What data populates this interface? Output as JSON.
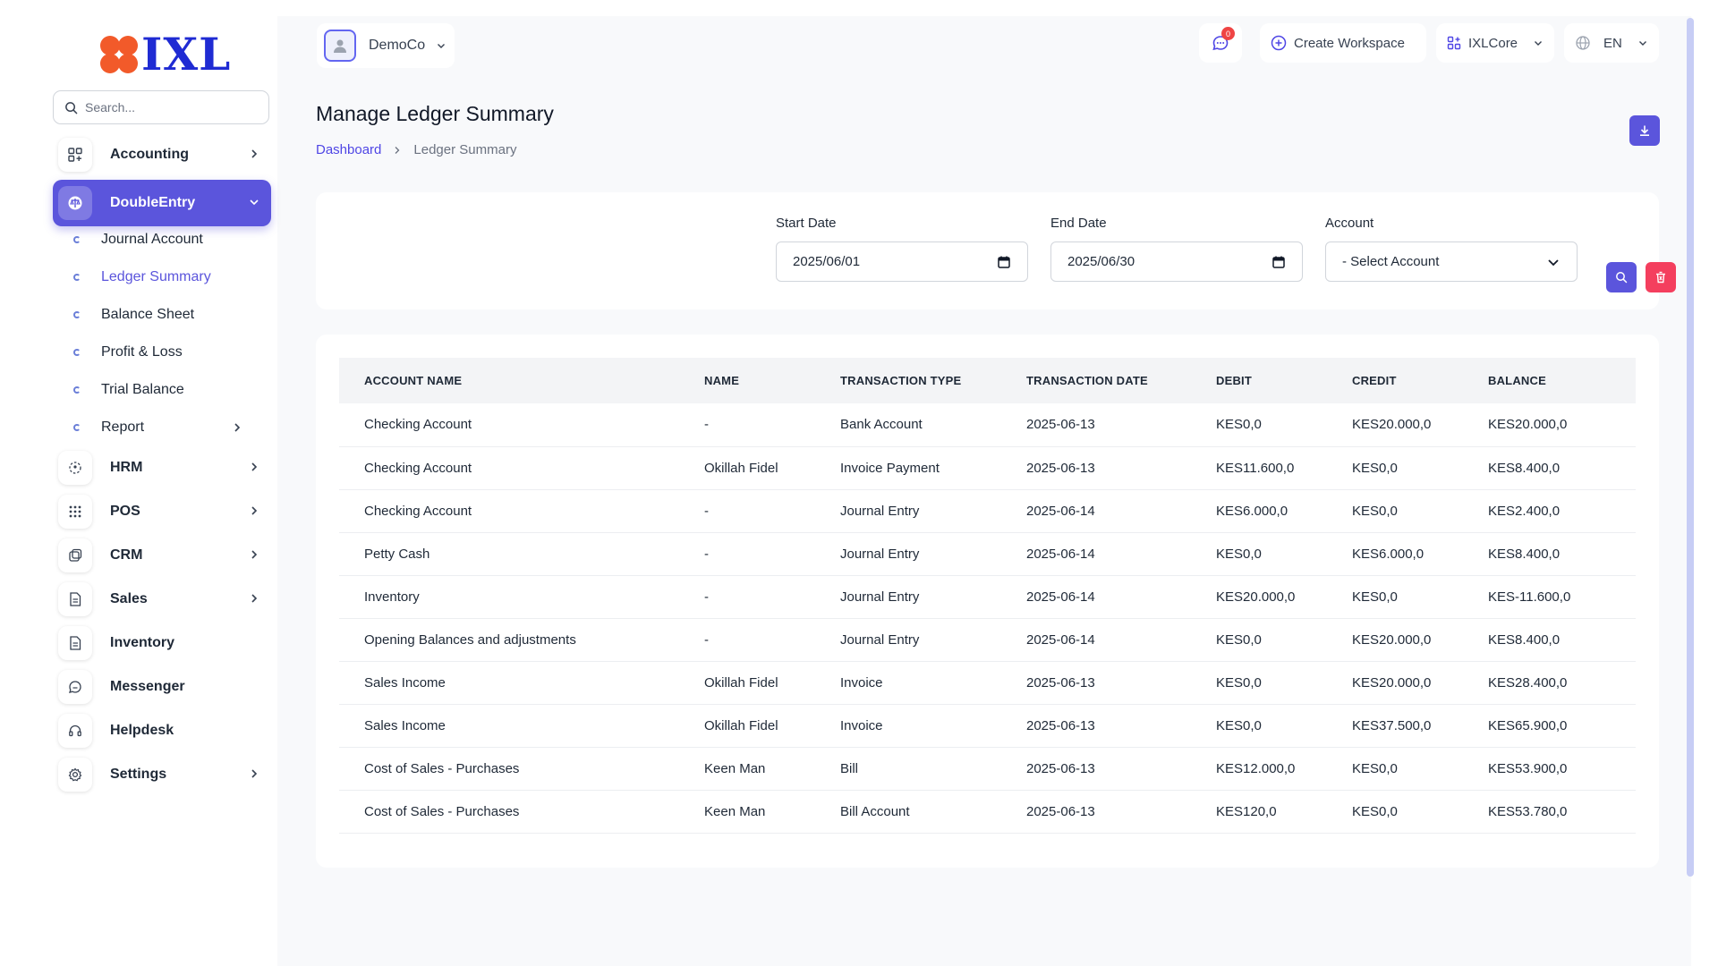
{
  "app": {
    "logo_text": "IXL",
    "brand_color": "#1f2bd3",
    "accent_color": "#5b55dc",
    "danger_color": "#f43f5e"
  },
  "search": {
    "placeholder": "Search..."
  },
  "sidebar": {
    "items": [
      {
        "label": "Accounting",
        "icon": "grid-icon",
        "has_children": true
      },
      {
        "label": "DoubleEntry",
        "icon": "scale-icon",
        "active": true,
        "expanded": true
      },
      {
        "label": "HRM",
        "icon": "users-icon",
        "has_children": true
      },
      {
        "label": "POS",
        "icon": "dots-grid-icon",
        "has_children": true
      },
      {
        "label": "CRM",
        "icon": "layers-icon",
        "has_children": true
      },
      {
        "label": "Sales",
        "icon": "file-icon",
        "has_children": true
      },
      {
        "label": "Inventory",
        "icon": "file-icon",
        "has_children": false
      },
      {
        "label": "Messenger",
        "icon": "chat-icon",
        "has_children": false
      },
      {
        "label": "Helpdesk",
        "icon": "headset-icon",
        "has_children": false
      },
      {
        "label": "Settings",
        "icon": "gear-icon",
        "has_children": true
      }
    ],
    "subitems": [
      {
        "label": "Journal Account"
      },
      {
        "label": "Ledger Summary",
        "active": true
      },
      {
        "label": "Balance Sheet"
      },
      {
        "label": "Profit & Loss"
      },
      {
        "label": "Trial Balance"
      },
      {
        "label": "Report",
        "has_children": true
      }
    ]
  },
  "header": {
    "workspace": "DemoCo",
    "message_count": "0",
    "create_workspace": "Create Workspace",
    "core_label": "IXLCore",
    "language": "EN"
  },
  "page": {
    "title": "Manage Ledger Summary",
    "breadcrumb_home": "Dashboard",
    "breadcrumb_current": "Ledger Summary"
  },
  "filters": {
    "start_date_label": "Start Date",
    "start_date_value": "2025/06/01",
    "end_date_label": "End Date",
    "end_date_value": "2025/06/30",
    "account_label": "Account",
    "account_value": "- Select Account"
  },
  "table": {
    "headers": [
      "ACCOUNT NAME",
      "NAME",
      "TRANSACTION TYPE",
      "TRANSACTION DATE",
      "DEBIT",
      "CREDIT",
      "BALANCE"
    ],
    "rows": [
      [
        "Checking Account",
        "-",
        "Bank Account",
        "2025-06-13",
        "KES0,0",
        "KES20.000,0",
        "KES20.000,0"
      ],
      [
        "Checking Account",
        "Okillah Fidel",
        "Invoice Payment",
        "2025-06-13",
        "KES11.600,0",
        "KES0,0",
        "KES8.400,0"
      ],
      [
        "Checking Account",
        "-",
        "Journal Entry",
        "2025-06-14",
        "KES6.000,0",
        "KES0,0",
        "KES2.400,0"
      ],
      [
        "Petty Cash",
        "-",
        "Journal Entry",
        "2025-06-14",
        "KES0,0",
        "KES6.000,0",
        "KES8.400,0"
      ],
      [
        "Inventory",
        "-",
        "Journal Entry",
        "2025-06-14",
        "KES20.000,0",
        "KES0,0",
        "KES-11.600,0"
      ],
      [
        "Opening Balances and adjustments",
        "-",
        "Journal Entry",
        "2025-06-14",
        "KES0,0",
        "KES20.000,0",
        "KES8.400,0"
      ],
      [
        "Sales Income",
        "Okillah Fidel",
        "Invoice",
        "2025-06-13",
        "KES0,0",
        "KES20.000,0",
        "KES28.400,0"
      ],
      [
        "Sales Income",
        "Okillah Fidel",
        "Invoice",
        "2025-06-13",
        "KES0,0",
        "KES37.500,0",
        "KES65.900,0"
      ],
      [
        "Cost of Sales - Purchases",
        "Keen Man",
        "Bill",
        "2025-06-13",
        "KES12.000,0",
        "KES0,0",
        "KES53.900,0"
      ],
      [
        "Cost of Sales - Purchases",
        "Keen Man",
        "Bill Account",
        "2025-06-13",
        "KES120,0",
        "KES0,0",
        "KES53.780,0"
      ]
    ]
  }
}
